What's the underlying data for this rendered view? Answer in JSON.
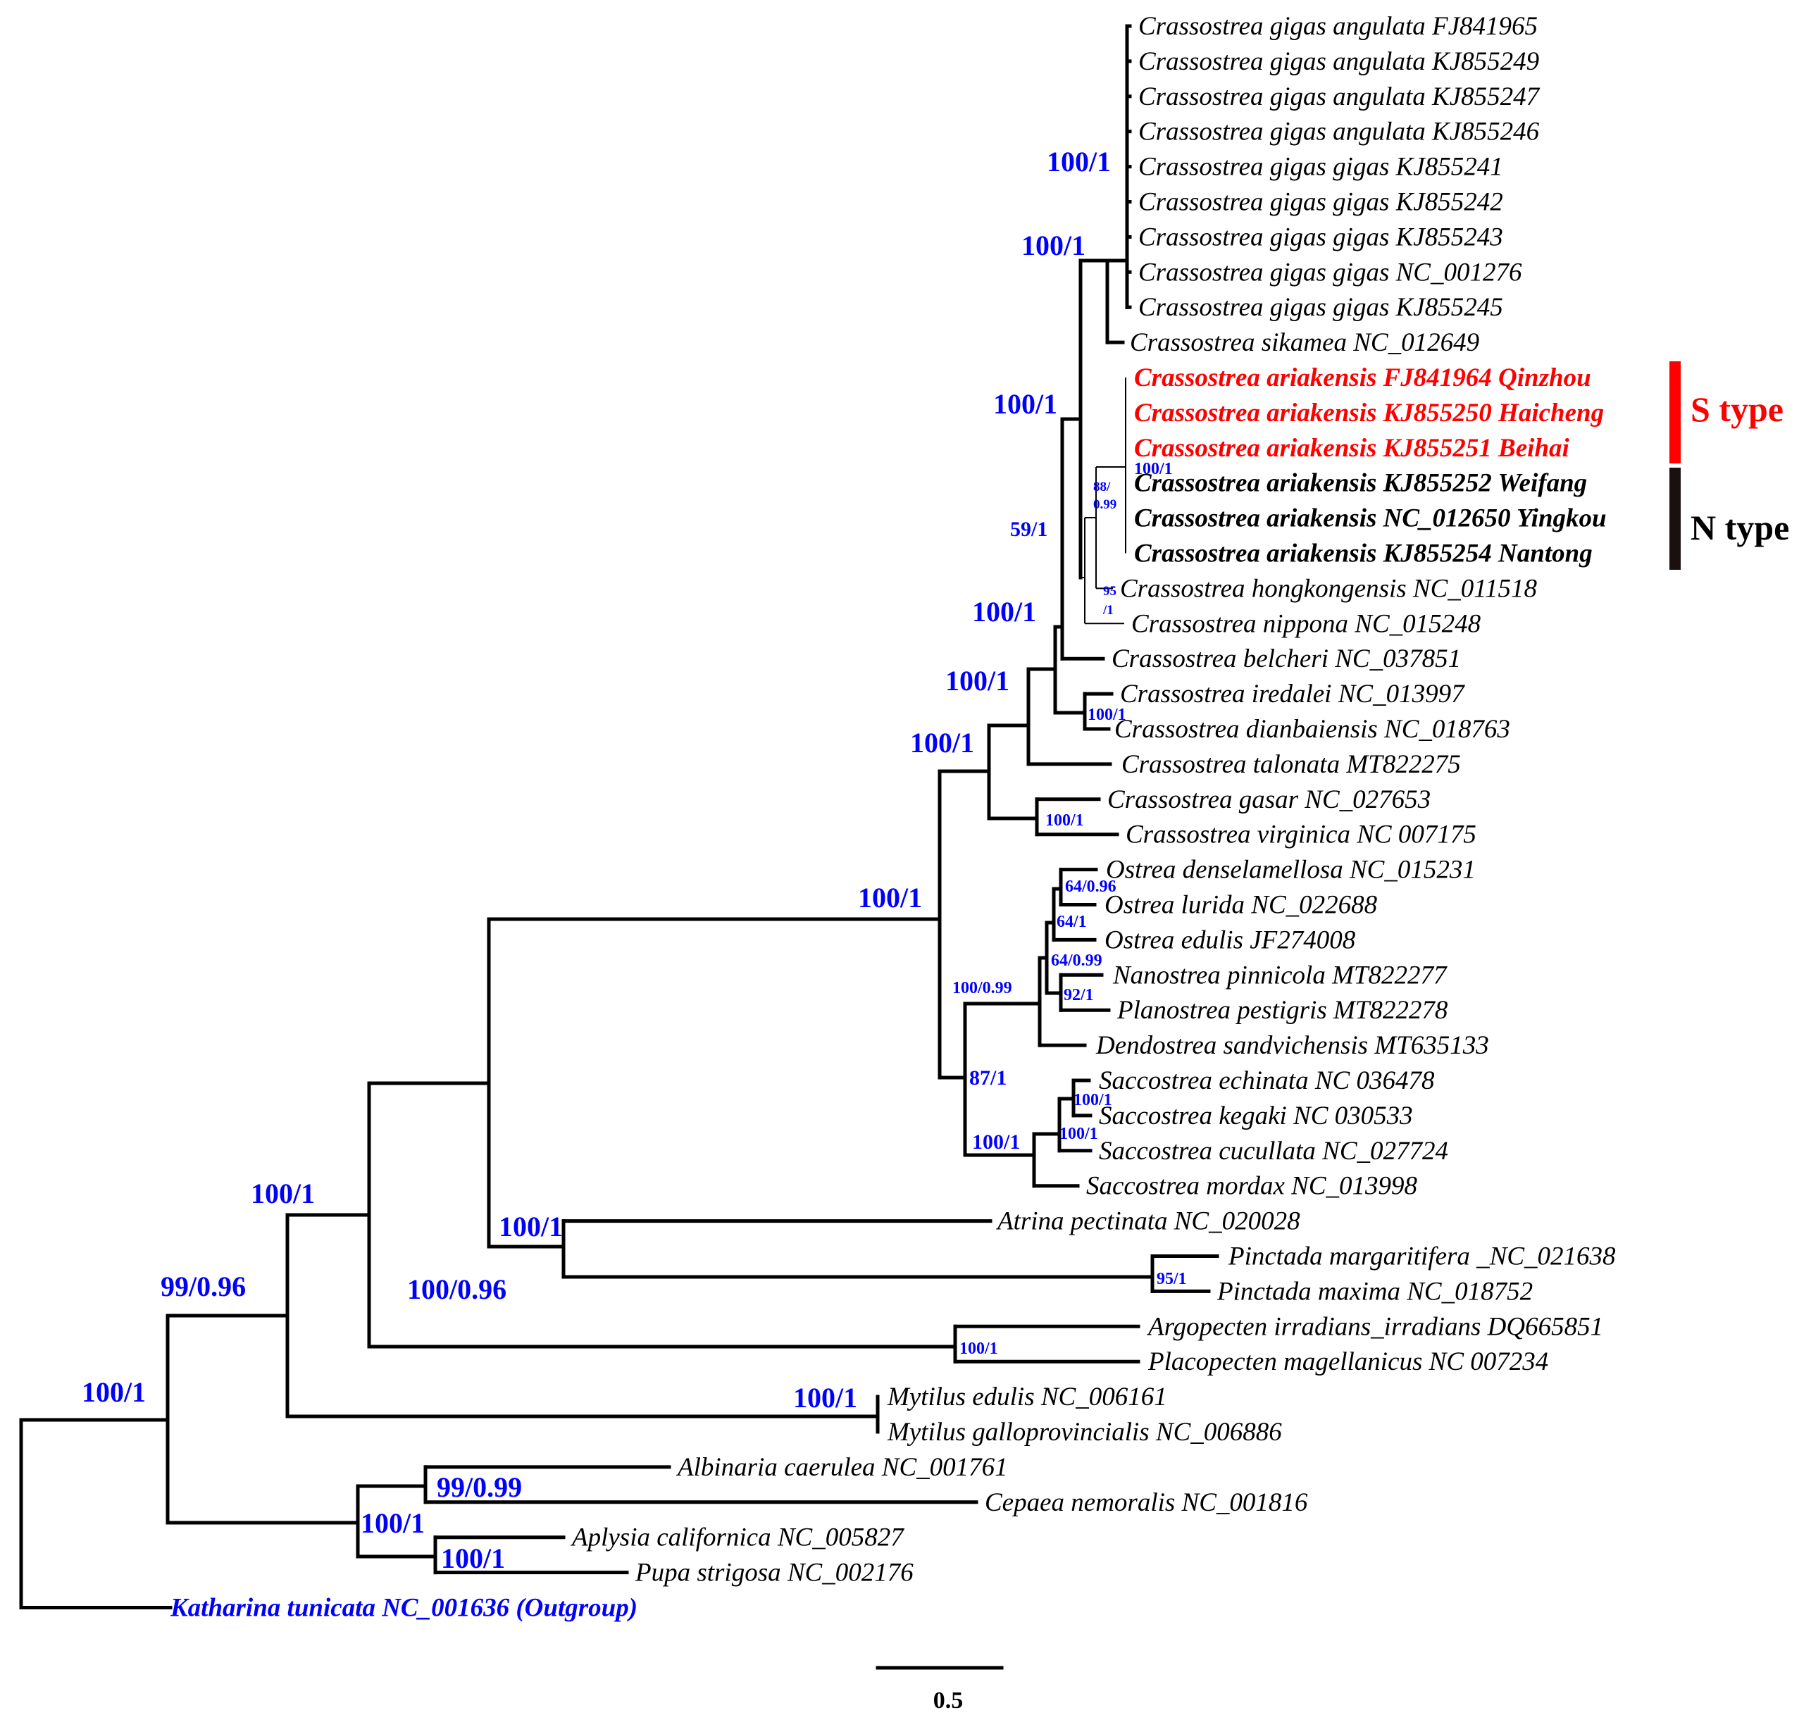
{
  "figure": {
    "type": "phylogenetic-tree",
    "colors": {
      "text": "#000000",
      "support": "#0000ff",
      "s_type": "#ff0000",
      "n_type": "#1a1010",
      "outgroup": "#0000ff"
    }
  },
  "taxa": [
    {
      "label": "Crassostrea gigas angulata FJ841965",
      "style": "normal"
    },
    {
      "label": "Crassostrea gigas angulata KJ855249",
      "style": "normal"
    },
    {
      "label": "Crassostrea gigas angulata KJ855247",
      "style": "normal"
    },
    {
      "label": "Crassostrea gigas angulata KJ855246",
      "style": "normal"
    },
    {
      "label": "Crassostrea gigas gigas KJ855241",
      "style": "normal"
    },
    {
      "label": "Crassostrea gigas gigas KJ855242",
      "style": "normal"
    },
    {
      "label": "Crassostrea gigas gigas KJ855243",
      "style": "normal"
    },
    {
      "label": "Crassostrea gigas gigas NC_001276",
      "style": "normal"
    },
    {
      "label": "Crassostrea gigas gigas KJ855245",
      "style": "normal"
    },
    {
      "label": "Crassostrea sikamea NC_012649",
      "style": "normal"
    },
    {
      "label": "Crassostrea ariakensis FJ841964 Qinzhou",
      "style": "red"
    },
    {
      "label": "Crassostrea ariakensis KJ855250 Haicheng",
      "style": "red"
    },
    {
      "label": "Crassostrea ariakensis KJ855251 Beihai",
      "style": "red"
    },
    {
      "label": "Crassostrea ariakensis KJ855252 Weifang",
      "style": "bold"
    },
    {
      "label": "Crassostrea ariakensis NC_012650 Yingkou",
      "style": "bold"
    },
    {
      "label": "Crassostrea ariakensis KJ855254 Nantong",
      "style": "bold"
    },
    {
      "label": "Crassostrea hongkongensis NC_011518",
      "style": "normal"
    },
    {
      "label": "Crassostrea nippona NC_015248",
      "style": "normal"
    },
    {
      "label": "Crassostrea belcheri NC_037851",
      "style": "normal"
    },
    {
      "label": "Crassostrea iredalei NC_013997",
      "style": "normal"
    },
    {
      "label": "Crassostrea dianbaiensis NC_018763",
      "style": "normal"
    },
    {
      "label": "Crassostrea talonata MT822275",
      "style": "normal"
    },
    {
      "label": "Crassostrea gasar NC_027653",
      "style": "normal"
    },
    {
      "label": "Crassostrea virginica  NC  007175",
      "style": "normal"
    },
    {
      "label": "Ostrea denselamellosa NC_015231",
      "style": "normal"
    },
    {
      "label": "Ostrea lurida NC_022688",
      "style": "normal"
    },
    {
      "label": "Ostrea edulis JF274008",
      "style": "normal"
    },
    {
      "label": "Nanostrea pinnicola MT822277",
      "style": "normal"
    },
    {
      "label": "Planostrea pestigris MT822278",
      "style": "normal"
    },
    {
      "label": "Dendostrea sandvichensis MT635133",
      "style": "normal"
    },
    {
      "label": "Saccostrea echinata NC  036478",
      "style": "normal"
    },
    {
      "label": "Saccostrea kegaki NC  030533",
      "style": "normal"
    },
    {
      "label": "Saccostrea cucullata NC_027724",
      "style": "normal"
    },
    {
      "label": "Saccostrea mordax NC_013998",
      "style": "normal"
    },
    {
      "label": "Atrina pectinata NC_020028",
      "style": "normal"
    },
    {
      "label": "Pinctada margaritifera _NC_021638",
      "style": "normal"
    },
    {
      "label": "Pinctada maxima NC_018752",
      "style": "normal"
    },
    {
      "label": "Argopecten irradians_irradians DQ665851",
      "style": "normal"
    },
    {
      "label": "Placopecten magellanicus NC  007234",
      "style": "normal"
    },
    {
      "label": "Mytilus edulis  NC_006161",
      "style": "normal"
    },
    {
      "label": "Mytilus galloprovincialis NC_006886",
      "style": "normal"
    },
    {
      "label": "Albinaria caerulea NC_001761",
      "style": "normal"
    },
    {
      "label": "Cepaea nemoralis NC_001816",
      "style": "normal"
    },
    {
      "label": "Aplysia californica NC_005827",
      "style": "normal"
    },
    {
      "label": "Pupa strigosa NC_002176",
      "style": "normal"
    },
    {
      "label": "Katharina tunicata NC_001636 (Outgroup)",
      "style": "outgroup"
    }
  ],
  "support_values": [
    "100/1",
    "100/1",
    "100/1",
    "100/1",
    "88/",
    "0.99",
    "59/1",
    "95",
    "/1",
    "100/1",
    "100/1",
    "100/1",
    "100/1",
    "100/1",
    "64/0.96",
    "64/1",
    "64/0.99",
    "100/0.99",
    "92/1",
    "100/1",
    "87/1",
    "100/1",
    "100/1",
    "100/1",
    "100/1",
    "95/1",
    "100/1",
    "100/1",
    "99/0.96",
    "100/0.96",
    "100/1",
    "100/1",
    "99/0.99",
    "100/1",
    "100/1"
  ],
  "groups": [
    {
      "label": "S type",
      "color": "#ff0000"
    },
    {
      "label": "N type",
      "color": "#1a1010"
    }
  ],
  "scale_bar": {
    "label": "0.5",
    "value": 0.5
  }
}
